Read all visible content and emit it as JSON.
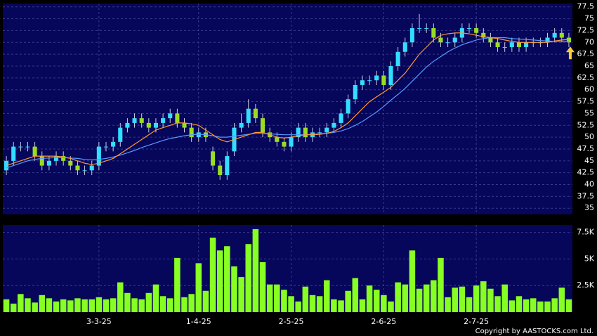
{
  "chart_data": {
    "type": "candlestick",
    "categories": [
      null,
      null,
      null,
      null,
      null,
      null,
      null,
      null,
      null,
      null,
      null,
      null,
      null,
      "3-3-25",
      null,
      null,
      null,
      null,
      null,
      null,
      null,
      null,
      null,
      null,
      null,
      null,
      null,
      "1-4-25",
      null,
      null,
      null,
      null,
      null,
      null,
      null,
      null,
      null,
      null,
      null,
      null,
      "2-5-25",
      null,
      null,
      null,
      null,
      null,
      null,
      null,
      null,
      null,
      null,
      null,
      null,
      "2-6-25",
      null,
      null,
      null,
      null,
      null,
      null,
      null,
      null,
      null,
      null,
      null,
      null,
      "2-7-25",
      null,
      null,
      null,
      null,
      null,
      null,
      null,
      null,
      null,
      null,
      null,
      null,
      null
    ],
    "open": [
      43,
      45,
      48,
      48,
      48,
      46,
      44,
      45,
      46,
      45,
      44,
      43,
      43,
      44,
      48,
      48,
      49,
      52,
      53,
      54,
      53,
      52,
      53,
      54,
      55,
      53,
      52,
      50,
      51,
      47,
      44,
      42,
      47,
      52,
      53,
      56,
      54,
      51,
      50,
      49,
      48,
      50,
      52,
      50,
      51,
      51,
      52,
      53,
      55,
      58,
      61,
      62,
      62,
      63,
      61,
      65,
      68,
      70,
      73,
      73,
      73,
      71,
      70,
      70,
      71,
      73,
      73,
      72,
      71,
      70,
      69,
      69,
      70,
      69,
      70,
      70,
      70,
      71,
      72,
      71
    ],
    "high": [
      46,
      49,
      49,
      49,
      49,
      47,
      46,
      47,
      47,
      46,
      45,
      44,
      45,
      49,
      49,
      50,
      53,
      54,
      55,
      55,
      54,
      54,
      55,
      56,
      56,
      54,
      53,
      52,
      52,
      48,
      45,
      47,
      53,
      55,
      58,
      57,
      55,
      52,
      51,
      50,
      51,
      53,
      53,
      52,
      52,
      53,
      54,
      56,
      59,
      62,
      63,
      63,
      64,
      64,
      66,
      69,
      71,
      74,
      76,
      74,
      74,
      72,
      71,
      72,
      74,
      74,
      74,
      73,
      72,
      71,
      70,
      71,
      71,
      71,
      71,
      71,
      72,
      73,
      73,
      72
    ],
    "low": [
      42,
      44,
      47,
      47,
      45,
      43,
      43,
      44,
      44,
      43,
      42,
      42,
      42,
      43,
      47,
      47,
      48,
      51,
      52,
      52,
      51,
      51,
      52,
      53,
      52,
      51,
      49,
      49,
      49,
      43,
      41,
      41,
      46,
      51,
      52,
      53,
      50,
      49,
      48,
      47,
      47,
      49,
      49,
      49,
      50,
      50,
      51,
      52,
      54,
      57,
      60,
      61,
      61,
      60,
      60,
      64,
      67,
      69,
      72,
      72,
      70,
      69,
      69,
      69,
      70,
      72,
      71,
      70,
      69,
      68,
      68,
      68,
      68,
      68,
      69,
      69,
      69,
      70,
      70,
      69
    ],
    "close": [
      45,
      48,
      48,
      48,
      46,
      44,
      45,
      46,
      45,
      44,
      43,
      43,
      44,
      48,
      48,
      49,
      52,
      53,
      54,
      53,
      52,
      53,
      54,
      55,
      53,
      52,
      50,
      51,
      50,
      44,
      42,
      46,
      52,
      53,
      56,
      54,
      51,
      50,
      49,
      48,
      50,
      52,
      50,
      51,
      51,
      52,
      53,
      55,
      58,
      61,
      62,
      62,
      63,
      61,
      65,
      68,
      70,
      73,
      73,
      73,
      71,
      70,
      70,
      71,
      73,
      73,
      72,
      71,
      70,
      69,
      69,
      70,
      69,
      70,
      70,
      70,
      71,
      72,
      71,
      70
    ],
    "ma_short": [
      44,
      44.5,
      45,
      45.5,
      46,
      46,
      46,
      46,
      45.8,
      45.5,
      45,
      44.5,
      44.2,
      44.5,
      45,
      45.5,
      46.5,
      47.5,
      48.5,
      49.5,
      50.5,
      51.5,
      52,
      52.5,
      53,
      53,
      52.8,
      52.5,
      51.5,
      50.5,
      49.5,
      49,
      49.5,
      50,
      50.5,
      51,
      51,
      50.5,
      50,
      49.8,
      50,
      50.3,
      50.5,
      50.5,
      50.6,
      50.8,
      51.2,
      52,
      53,
      54.5,
      56,
      57.5,
      58.5,
      59.5,
      60.5,
      62,
      63.5,
      65.5,
      67.5,
      69,
      70.5,
      71.5,
      71.8,
      72,
      72,
      71.8,
      71.5,
      71.2,
      71,
      70.8,
      70.5,
      70.2,
      70,
      70,
      70,
      70,
      70,
      70.3,
      70.5,
      70.6
    ],
    "ma_long": [
      43.5,
      44,
      44.5,
      45,
      45.3,
      45.5,
      45.6,
      45.7,
      45.7,
      45.6,
      45.5,
      45.3,
      45.2,
      45.3,
      45.5,
      45.8,
      46.2,
      46.7,
      47.2,
      47.8,
      48.3,
      48.8,
      49.3,
      49.7,
      50,
      50.3,
      50.5,
      50.6,
      50.5,
      50.3,
      50,
      50,
      50.2,
      50.4,
      50.6,
      50.8,
      50.8,
      50.7,
      50.6,
      50.5,
      50.5,
      50.5,
      50.5,
      50.6,
      50.7,
      50.8,
      51,
      51.3,
      51.8,
      52.5,
      53.3,
      54.3,
      55.3,
      56.5,
      57.8,
      59,
      60.3,
      61.8,
      63.3,
      64.8,
      66,
      67,
      68,
      68.8,
      69.5,
      70,
      70.5,
      70.8,
      71,
      71,
      71,
      70.8,
      70.7,
      70.6,
      70.5,
      70.4,
      70.3,
      70.2,
      70.2,
      70.2
    ],
    "volume": [
      1200,
      800,
      1700,
      1300,
      900,
      1600,
      1300,
      1000,
      1200,
      1100,
      1300,
      1200,
      1200,
      1400,
      1200,
      1300,
      2800,
      1800,
      1300,
      1200,
      1800,
      2600,
      1500,
      1300,
      5100,
      1400,
      1700,
      4600,
      2000,
      7000,
      5800,
      6200,
      4300,
      3300,
      6400,
      7800,
      4700,
      2600,
      2600,
      2100,
      1500,
      1000,
      2400,
      1600,
      1500,
      3000,
      1200,
      1100,
      2000,
      3200,
      1200,
      2500,
      2100,
      1600,
      1000,
      2800,
      2600,
      5800,
      2200,
      2600,
      3000,
      5100,
      1400,
      2300,
      2400,
      1400,
      2500,
      2900,
      2200,
      1500,
      2600,
      1100,
      1500,
      1200,
      1300,
      1000,
      1000,
      1300,
      2300,
      1200
    ],
    "up_color": "#33ddff",
    "down_color": "#99dd22",
    "ma_short_color": "#ff9933",
    "ma_long_color": "#5599ff",
    "volume_color": "#88ff22",
    "ylim": [
      33.7,
      78.2
    ],
    "yticks": [
      35,
      37.5,
      40,
      42.5,
      45,
      47.5,
      50,
      52.5,
      55,
      57.5,
      60,
      62.5,
      65,
      67.5,
      70,
      72.5,
      75,
      77.5
    ],
    "vlim": [
      0,
      8200
    ],
    "vticks": [
      {
        "value": 2500,
        "label": "2.5K"
      },
      {
        "value": 5000,
        "label": "5K"
      },
      {
        "value": 7500,
        "label": "7.5K"
      }
    ],
    "grid": true,
    "copyright": "Copyright by AASTOCKS.com Ltd."
  }
}
